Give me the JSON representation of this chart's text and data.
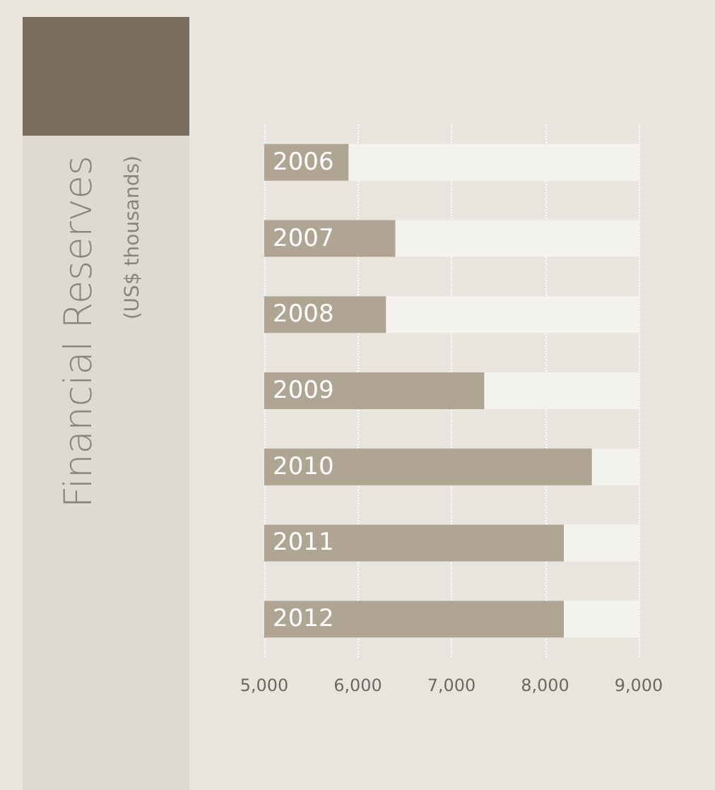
{
  "chart_data": {
    "type": "bar",
    "orientation": "horizontal",
    "title": "Financial Reserves",
    "subtitle": "(US$ thousands)",
    "categories": [
      "2006",
      "2007",
      "2008",
      "2009",
      "2010",
      "2011",
      "2012"
    ],
    "values": [
      5900,
      6400,
      6300,
      7350,
      8500,
      8200,
      8200
    ],
    "color": "#b0a492",
    "xlim": [
      5000,
      9000
    ],
    "xticks": [
      {
        "value": 5000,
        "label": "5,000"
      },
      {
        "value": 6000,
        "label": "6,000"
      },
      {
        "value": 7000,
        "label": "7,000"
      },
      {
        "value": 8000,
        "label": "8,000"
      },
      {
        "value": 9000,
        "label": "9,000"
      }
    ],
    "grid": "x"
  }
}
